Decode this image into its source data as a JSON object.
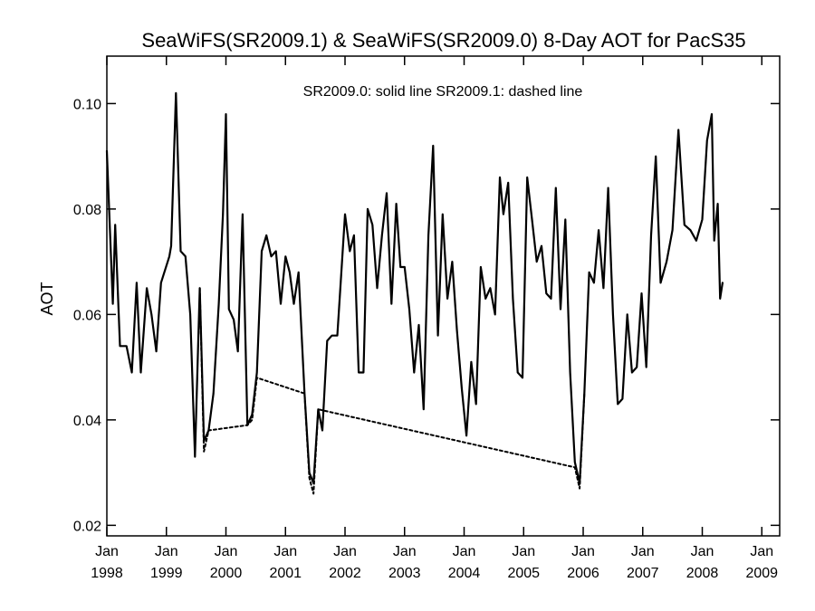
{
  "chart_data": {
    "type": "line",
    "title": "SeaWiFS(SR2009.1) & SeaWiFS(SR2009.0) 8-Day AOT for PacS35",
    "annotation": "SR2009.0: solid line   SR2009.1: dashed line",
    "ylabel": "AOT",
    "xlabel": "",
    "ylim": [
      0.018,
      0.109
    ],
    "xlim": [
      1998.0,
      2009.3
    ],
    "grid": false,
    "y_ticks": [
      {
        "value": 0.02,
        "label": "0.02"
      },
      {
        "value": 0.04,
        "label": "0.04"
      },
      {
        "value": 0.06,
        "label": "0.06"
      },
      {
        "value": 0.08,
        "label": "0.08"
      },
      {
        "value": 0.1,
        "label": "0.10"
      }
    ],
    "x_ticks": [
      {
        "value": 1998.0,
        "month": "Jan",
        "year": "1998"
      },
      {
        "value": 1999.0,
        "month": "Jan",
        "year": "1999"
      },
      {
        "value": 2000.0,
        "month": "Jan",
        "year": "2000"
      },
      {
        "value": 2001.0,
        "month": "Jan",
        "year": "2001"
      },
      {
        "value": 2002.0,
        "month": "Jan",
        "year": "2002"
      },
      {
        "value": 2003.0,
        "month": "Jan",
        "year": "2003"
      },
      {
        "value": 2004.0,
        "month": "Jan",
        "year": "2004"
      },
      {
        "value": 2005.0,
        "month": "Jan",
        "year": "2005"
      },
      {
        "value": 2006.0,
        "month": "Jan",
        "year": "2006"
      },
      {
        "value": 2007.0,
        "month": "Jan",
        "year": "2007"
      },
      {
        "value": 2008.0,
        "month": "Jan",
        "year": "2008"
      },
      {
        "value": 2009.0,
        "month": "Jan",
        "year": "2009"
      }
    ],
    "series": [
      {
        "name": "SR2009.0",
        "style": "solid",
        "color": "#000000",
        "points": [
          [
            1998.0,
            0.091
          ],
          [
            1998.1,
            0.062
          ],
          [
            1998.14,
            0.077
          ],
          [
            1998.22,
            0.054
          ],
          [
            1998.33,
            0.054
          ],
          [
            1998.42,
            0.049
          ],
          [
            1998.5,
            0.066
          ],
          [
            1998.57,
            0.049
          ],
          [
            1998.67,
            0.065
          ],
          [
            1998.75,
            0.06
          ],
          [
            1998.83,
            0.053
          ],
          [
            1998.91,
            0.066
          ],
          [
            1999.05,
            0.071
          ],
          [
            1999.08,
            0.073
          ],
          [
            1999.16,
            0.102
          ],
          [
            1999.24,
            0.072
          ],
          [
            1999.32,
            0.071
          ],
          [
            1999.4,
            0.06
          ],
          [
            1999.48,
            0.033
          ],
          [
            1999.56,
            0.065
          ],
          [
            1999.63,
            0.036
          ],
          [
            1999.71,
            0.038
          ],
          [
            1999.79,
            0.045
          ],
          [
            1999.88,
            0.062
          ],
          [
            1999.95,
            0.079
          ],
          [
            2000.0,
            0.098
          ],
          [
            2000.05,
            0.061
          ],
          [
            2000.13,
            0.059
          ],
          [
            2000.2,
            0.053
          ],
          [
            2000.28,
            0.079
          ],
          [
            2000.36,
            0.039
          ],
          [
            2000.44,
            0.041
          ],
          [
            2000.52,
            0.049
          ],
          [
            2000.6,
            0.072
          ],
          [
            2000.68,
            0.075
          ],
          [
            2000.76,
            0.071
          ],
          [
            2000.84,
            0.072
          ],
          [
            2000.92,
            0.062
          ],
          [
            2001.0,
            0.071
          ],
          [
            2001.07,
            0.068
          ],
          [
            2001.14,
            0.062
          ],
          [
            2001.22,
            0.068
          ],
          [
            2001.32,
            0.045
          ],
          [
            2001.4,
            0.03
          ],
          [
            2001.47,
            0.028
          ],
          [
            2001.55,
            0.042
          ],
          [
            2001.62,
            0.038
          ],
          [
            2001.7,
            0.055
          ],
          [
            2001.78,
            0.056
          ],
          [
            2001.87,
            0.056
          ],
          [
            2001.95,
            0.07
          ],
          [
            2002.0,
            0.079
          ],
          [
            2002.08,
            0.072
          ],
          [
            2002.15,
            0.075
          ],
          [
            2002.23,
            0.049
          ],
          [
            2002.31,
            0.049
          ],
          [
            2002.38,
            0.08
          ],
          [
            2002.46,
            0.077
          ],
          [
            2002.54,
            0.065
          ],
          [
            2002.62,
            0.075
          ],
          [
            2002.7,
            0.083
          ],
          [
            2002.78,
            0.062
          ],
          [
            2002.86,
            0.081
          ],
          [
            2002.93,
            0.069
          ],
          [
            2003.0,
            0.069
          ],
          [
            2003.08,
            0.061
          ],
          [
            2003.16,
            0.049
          ],
          [
            2003.24,
            0.058
          ],
          [
            2003.32,
            0.042
          ],
          [
            2003.4,
            0.075
          ],
          [
            2003.48,
            0.092
          ],
          [
            2003.56,
            0.056
          ],
          [
            2003.64,
            0.079
          ],
          [
            2003.72,
            0.063
          ],
          [
            2003.8,
            0.07
          ],
          [
            2003.88,
            0.057
          ],
          [
            2003.96,
            0.046
          ],
          [
            2004.04,
            0.037
          ],
          [
            2004.12,
            0.051
          ],
          [
            2004.2,
            0.043
          ],
          [
            2004.28,
            0.069
          ],
          [
            2004.36,
            0.063
          ],
          [
            2004.44,
            0.065
          ],
          [
            2004.52,
            0.06
          ],
          [
            2004.6,
            0.086
          ],
          [
            2004.66,
            0.079
          ],
          [
            2004.74,
            0.085
          ],
          [
            2004.82,
            0.063
          ],
          [
            2004.9,
            0.049
          ],
          [
            2004.98,
            0.048
          ],
          [
            2005.06,
            0.086
          ],
          [
            2005.14,
            0.078
          ],
          [
            2005.22,
            0.07
          ],
          [
            2005.3,
            0.073
          ],
          [
            2005.38,
            0.064
          ],
          [
            2005.46,
            0.063
          ],
          [
            2005.54,
            0.084
          ],
          [
            2005.62,
            0.061
          ],
          [
            2005.7,
            0.078
          ],
          [
            2005.78,
            0.049
          ],
          [
            2005.86,
            0.032
          ],
          [
            2005.94,
            0.028
          ],
          [
            2006.02,
            0.045
          ],
          [
            2006.1,
            0.068
          ],
          [
            2006.18,
            0.066
          ],
          [
            2006.26,
            0.076
          ],
          [
            2006.34,
            0.065
          ],
          [
            2006.42,
            0.084
          ],
          [
            2006.5,
            0.06
          ],
          [
            2006.58,
            0.043
          ],
          [
            2006.66,
            0.044
          ],
          [
            2006.74,
            0.06
          ],
          [
            2006.82,
            0.049
          ],
          [
            2006.9,
            0.05
          ],
          [
            2006.98,
            0.064
          ],
          [
            2007.06,
            0.05
          ],
          [
            2007.14,
            0.075
          ],
          [
            2007.22,
            0.09
          ],
          [
            2007.3,
            0.066
          ],
          [
            2007.4,
            0.07
          ],
          [
            2007.5,
            0.076
          ],
          [
            2007.6,
            0.095
          ],
          [
            2007.7,
            0.077
          ],
          [
            2007.8,
            0.076
          ],
          [
            2007.9,
            0.074
          ],
          [
            2008.0,
            0.078
          ],
          [
            2008.08,
            0.093
          ],
          [
            2008.16,
            0.098
          ],
          [
            2008.2,
            0.074
          ],
          [
            2008.26,
            0.081
          ],
          [
            2008.3,
            0.063
          ],
          [
            2008.34,
            0.066
          ]
        ]
      },
      {
        "name": "SR2009.1",
        "style": "dashed",
        "color": "#000000",
        "points": [
          [
            1999.56,
            0.065
          ],
          [
            1999.63,
            0.034
          ],
          [
            1999.71,
            0.038
          ],
          [
            2000.36,
            0.039
          ],
          [
            2000.44,
            0.04
          ],
          [
            2000.52,
            0.048
          ],
          [
            2001.32,
            0.045
          ],
          [
            2001.4,
            0.029
          ],
          [
            2001.47,
            0.026
          ],
          [
            2001.55,
            0.042
          ],
          [
            2005.86,
            0.031
          ],
          [
            2005.94,
            0.027
          ],
          [
            2006.02,
            0.045
          ]
        ]
      }
    ]
  }
}
